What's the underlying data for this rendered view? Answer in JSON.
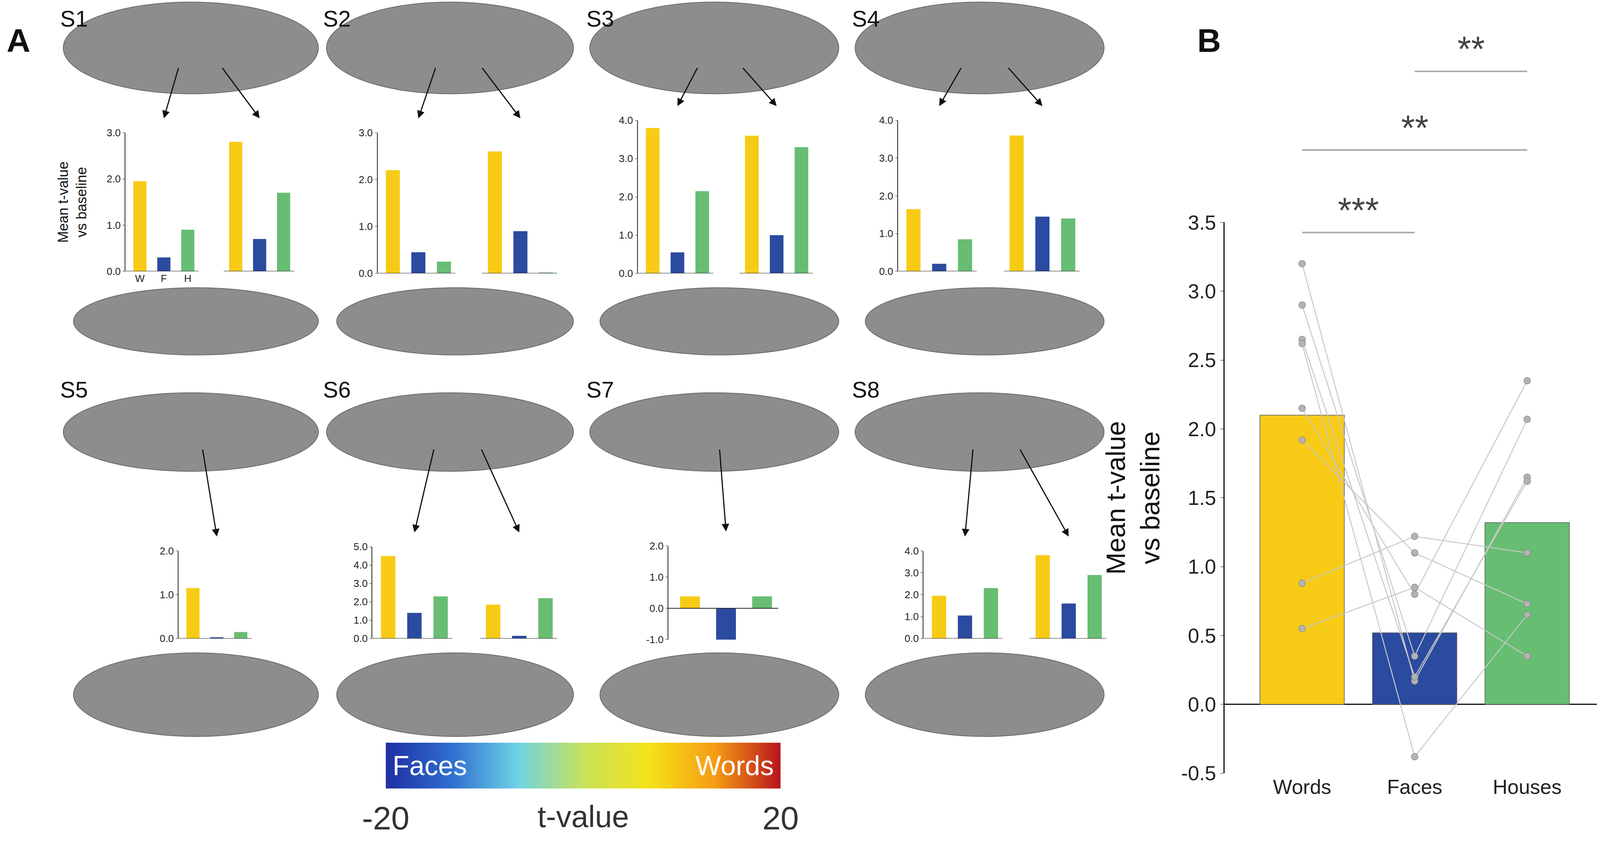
{
  "panel_labels": [
    "A",
    "B"
  ],
  "colorbar": {
    "range": [
      -20,
      20
    ],
    "ticks": [
      -20,
      20
    ],
    "label": "t-value",
    "low_label": "Faces",
    "high_label": "Words",
    "colors": [
      "#1f2fa3",
      "#2f6fd0",
      "#6ed3e6",
      "#c8e25a",
      "#f5e31a",
      "#f59c14",
      "#b8141c"
    ]
  },
  "chart_data": [
    {
      "type": "bar",
      "title": "S1",
      "y_label": [
        "Mean t-value",
        "vs baseline"
      ],
      "categories": [
        "W",
        "F",
        "H",
        null,
        null,
        null,
        null
      ],
      "values": [
        1.95,
        0.3,
        0.9,
        null,
        2.8,
        0.7,
        1.7
      ],
      "colors": [
        "#F7CB15",
        "#2B4BA0",
        "#67BD72",
        null,
        "#F7CB15",
        "#2B4BA0",
        "#67BD72"
      ],
      "ylim": [
        0,
        3
      ],
      "yticks": [
        {
          "value": 0,
          "label": "0.0"
        },
        {
          "value": 1,
          "label": "1.0"
        },
        {
          "value": 2,
          "label": "2.0"
        },
        {
          "value": 3,
          "label": "3.0"
        }
      ]
    },
    {
      "type": "bar",
      "title": "S2",
      "categories": [
        null,
        null,
        null,
        null,
        null,
        null,
        null
      ],
      "values": [
        2.2,
        0.45,
        0.25,
        null,
        2.6,
        0.9,
        0.02
      ],
      "colors": [
        "#F7CB15",
        "#2B4BA0",
        "#67BD72",
        null,
        "#F7CB15",
        "#2B4BA0",
        "#67BD72"
      ],
      "ylim": [
        0,
        3
      ],
      "yticks": [
        {
          "value": 0,
          "label": "0.0"
        },
        {
          "value": 1,
          "label": "1.0"
        },
        {
          "value": 2,
          "label": "2.0"
        },
        {
          "value": 3,
          "label": "3.0"
        }
      ]
    },
    {
      "type": "bar",
      "title": "S3",
      "categories": [
        null,
        null,
        null,
        null,
        null,
        null,
        null
      ],
      "values": [
        3.8,
        0.55,
        2.15,
        null,
        3.6,
        1.0,
        3.3
      ],
      "colors": [
        "#F7CB15",
        "#2B4BA0",
        "#67BD72",
        null,
        "#F7CB15",
        "#2B4BA0",
        "#67BD72"
      ],
      "ylim": [
        0,
        4
      ],
      "yticks": [
        {
          "value": 0,
          "label": "0.0"
        },
        {
          "value": 1,
          "label": "1.0"
        },
        {
          "value": 2,
          "label": "2.0"
        },
        {
          "value": 3,
          "label": "3.0"
        },
        {
          "value": 4,
          "label": "4.0"
        }
      ]
    },
    {
      "type": "bar",
      "title": "S4",
      "categories": [
        null,
        null,
        null,
        null,
        null,
        null,
        null
      ],
      "values": [
        1.65,
        0.2,
        0.85,
        null,
        3.6,
        1.45,
        1.4
      ],
      "colors": [
        "#F7CB15",
        "#2B4BA0",
        "#67BD72",
        null,
        "#F7CB15",
        "#2B4BA0",
        "#67BD72"
      ],
      "ylim": [
        0,
        4
      ],
      "yticks": [
        {
          "value": 0,
          "label": "0.0"
        },
        {
          "value": 1,
          "label": "1.0"
        },
        {
          "value": 2,
          "label": "2.0"
        },
        {
          "value": 3,
          "label": "3.0"
        },
        {
          "value": 4,
          "label": "4.0"
        }
      ]
    },
    {
      "type": "bar",
      "title": "S5",
      "categories": [
        null,
        null,
        null
      ],
      "values": [
        1.15,
        0.03,
        0.15
      ],
      "colors": [
        "#F7CB15",
        "#2B4BA0",
        "#67BD72"
      ],
      "ylim": [
        0,
        2
      ],
      "yticks": [
        {
          "value": 0,
          "label": "0.0"
        },
        {
          "value": 1,
          "label": "1.0"
        },
        {
          "value": 2,
          "label": "2.0"
        }
      ]
    },
    {
      "type": "bar",
      "title": "S6",
      "categories": [
        null,
        null,
        null,
        null,
        null,
        null,
        null
      ],
      "values": [
        4.5,
        1.4,
        2.3,
        null,
        1.85,
        0.15,
        2.2
      ],
      "colors": [
        "#F7CB15",
        "#2B4BA0",
        "#67BD72",
        null,
        "#F7CB15",
        "#2B4BA0",
        "#67BD72"
      ],
      "ylim": [
        0,
        5
      ],
      "yticks": [
        {
          "value": 0,
          "label": "0.0"
        },
        {
          "value": 1,
          "label": "1.0"
        },
        {
          "value": 2,
          "label": "2.0"
        },
        {
          "value": 3,
          "label": "3.0"
        },
        {
          "value": 4,
          "label": "4.0"
        },
        {
          "value": 5,
          "label": "5.0"
        }
      ]
    },
    {
      "type": "bar",
      "title": "S7",
      "categories": [
        null,
        null,
        null
      ],
      "values": [
        0.38,
        -1.0,
        0.38
      ],
      "colors": [
        "#F7CB15",
        "#2B4BA0",
        "#67BD72"
      ],
      "ylim": [
        -1,
        2
      ],
      "yticks": [
        {
          "value": -1,
          "label": "-1.0"
        },
        {
          "value": 0,
          "label": "0.0"
        },
        {
          "value": 1,
          "label": "1.0"
        },
        {
          "value": 2,
          "label": "2.0"
        }
      ]
    },
    {
      "type": "bar",
      "title": "S8",
      "categories": [
        null,
        null,
        null,
        null,
        null,
        null,
        null
      ],
      "values": [
        1.95,
        1.05,
        2.3,
        null,
        3.8,
        1.6,
        2.9
      ],
      "colors": [
        "#F7CB15",
        "#2B4BA0",
        "#67BD72",
        null,
        "#F7CB15",
        "#2B4BA0",
        "#67BD72"
      ],
      "ylim": [
        0,
        4
      ],
      "yticks": [
        {
          "value": 0,
          "label": "0.0"
        },
        {
          "value": 1,
          "label": "1.0"
        },
        {
          "value": 2,
          "label": "2.0"
        },
        {
          "value": 3,
          "label": "3.0"
        },
        {
          "value": 4,
          "label": "4.0"
        }
      ]
    },
    {
      "type": "bar",
      "y_label": [
        "Mean t-value",
        "vs baseline"
      ],
      "categories": [
        "Words",
        "Faces",
        "Houses"
      ],
      "values": [
        2.1,
        0.52,
        1.32
      ],
      "colors": [
        "#F7CB15",
        "#2B4BA0",
        "#67BD72"
      ],
      "ylim": [
        -0.5,
        3.5
      ],
      "yticks": [
        {
          "value": -0.5,
          "label": "-0.5"
        },
        {
          "value": 0,
          "label": "0.0"
        },
        {
          "value": 0.5,
          "label": "0.5"
        },
        {
          "value": 1,
          "label": "1.0"
        },
        {
          "value": 1.5,
          "label": "1.5"
        },
        {
          "value": 2,
          "label": "2.0"
        },
        {
          "value": 2.5,
          "label": "2.5"
        },
        {
          "value": 3,
          "label": "3.0"
        },
        {
          "value": 3.5,
          "label": "3.5"
        }
      ],
      "subjects": [
        [
          3.2,
          0.17,
          1.65
        ],
        [
          2.9,
          0.35,
          2.07
        ],
        [
          2.65,
          0.2,
          1.62
        ],
        [
          2.62,
          -0.38,
          0.65
        ],
        [
          2.15,
          0.8,
          2.35
        ],
        [
          1.92,
          1.1,
          0.73
        ],
        [
          0.88,
          1.22,
          1.1
        ],
        [
          0.55,
          0.85,
          0.35
        ]
      ],
      "significance": [
        {
          "from": "Words",
          "to": "Faces",
          "label": "***"
        },
        {
          "from": "Words",
          "to": "Houses",
          "label": "**"
        },
        {
          "from": "Faces",
          "to": "Houses",
          "label": "**"
        }
      ]
    }
  ]
}
